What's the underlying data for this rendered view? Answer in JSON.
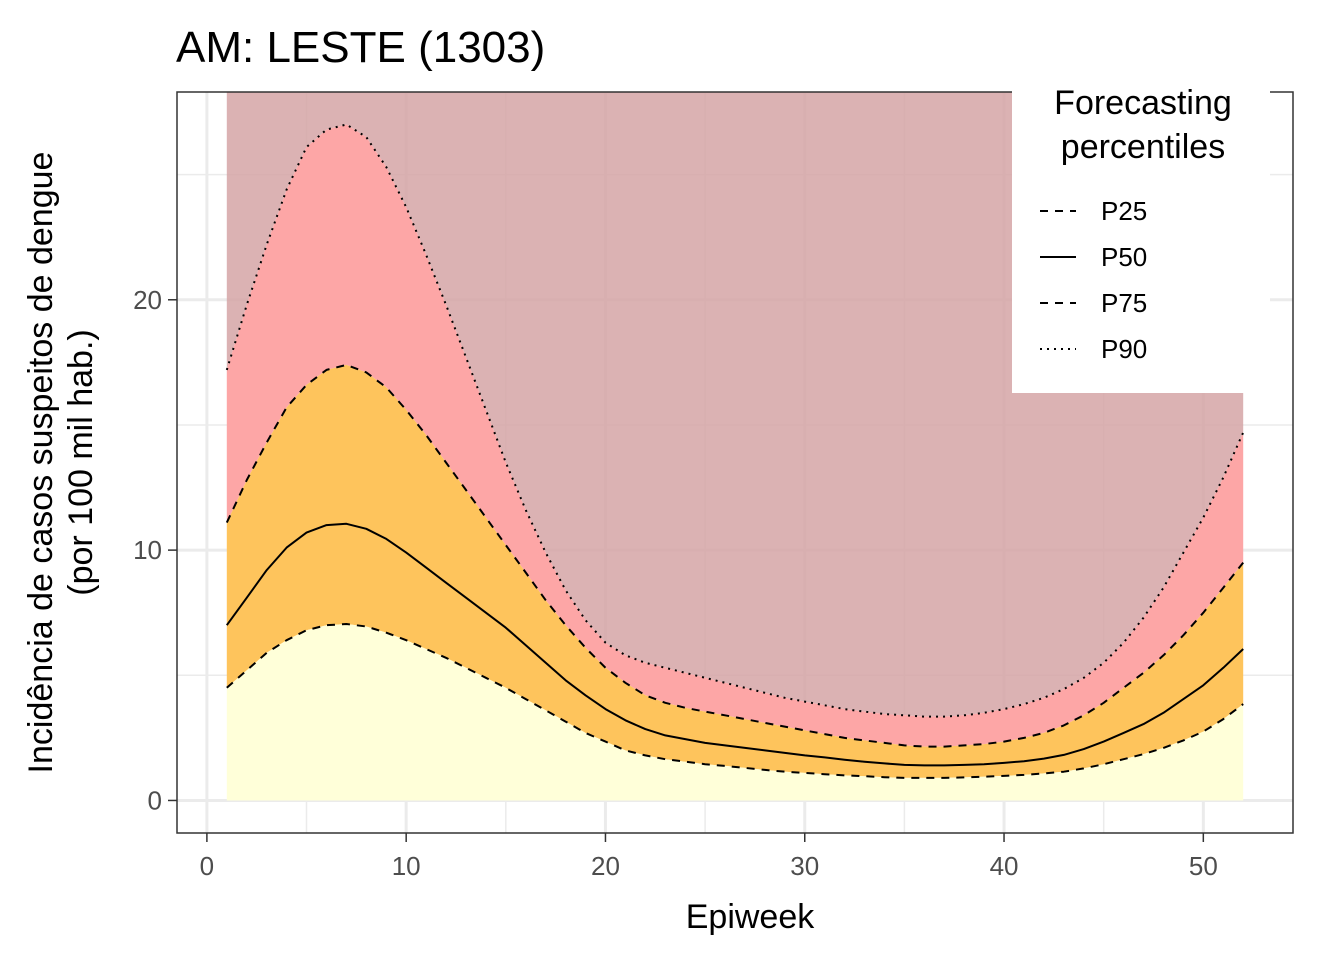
{
  "chart_data": {
    "type": "area",
    "title": "AM: LESTE (1303)",
    "xlabel": "Epiweek",
    "ylabel": "Incidência de casos suspeitos de dengue\n(por 100 mil hab.)",
    "xlim": [
      -1.5,
      54.5
    ],
    "ylim": [
      -1.3,
      28.3
    ],
    "x_ticks": [
      0,
      10,
      20,
      30,
      40,
      50
    ],
    "y_ticks": [
      0,
      10,
      20
    ],
    "grid": true,
    "legend": {
      "title": "Forecasting\npercentiles",
      "position": "top-right",
      "entries": [
        {
          "label": "P25",
          "dash": "dashed"
        },
        {
          "label": "P50",
          "dash": "solid"
        },
        {
          "label": "P75",
          "dash": "dashed"
        },
        {
          "label": "P90",
          "dash": "dotted"
        }
      ]
    },
    "x": [
      1,
      2,
      3,
      4,
      5,
      6,
      7,
      8,
      9,
      10,
      11,
      12,
      13,
      14,
      15,
      16,
      17,
      18,
      19,
      20,
      21,
      22,
      23,
      24,
      25,
      26,
      27,
      28,
      29,
      30,
      31,
      32,
      33,
      34,
      35,
      36,
      37,
      38,
      39,
      40,
      41,
      42,
      43,
      44,
      45,
      46,
      47,
      48,
      49,
      50,
      51,
      52
    ],
    "series": [
      {
        "name": "P25",
        "values": [
          4.5,
          5.2,
          5.9,
          6.4,
          6.8,
          7.0,
          7.05,
          6.95,
          6.7,
          6.4,
          6.05,
          5.7,
          5.3,
          4.9,
          4.5,
          4.05,
          3.6,
          3.15,
          2.7,
          2.35,
          2.0,
          1.8,
          1.65,
          1.55,
          1.45,
          1.38,
          1.3,
          1.22,
          1.15,
          1.1,
          1.05,
          1.0,
          0.97,
          0.93,
          0.9,
          0.9,
          0.9,
          0.92,
          0.95,
          0.98,
          1.02,
          1.08,
          1.15,
          1.28,
          1.45,
          1.65,
          1.85,
          2.1,
          2.4,
          2.75,
          3.25,
          3.85
        ]
      },
      {
        "name": "P50",
        "values": [
          7.0,
          8.1,
          9.2,
          10.1,
          10.7,
          11.0,
          11.05,
          10.85,
          10.45,
          9.9,
          9.3,
          8.7,
          8.1,
          7.5,
          6.9,
          6.2,
          5.5,
          4.8,
          4.2,
          3.65,
          3.2,
          2.85,
          2.6,
          2.45,
          2.3,
          2.2,
          2.1,
          2.0,
          1.9,
          1.8,
          1.72,
          1.63,
          1.55,
          1.48,
          1.42,
          1.4,
          1.4,
          1.42,
          1.45,
          1.5,
          1.57,
          1.67,
          1.82,
          2.05,
          2.35,
          2.7,
          3.05,
          3.5,
          4.05,
          4.6,
          5.3,
          6.05
        ]
      },
      {
        "name": "P75",
        "values": [
          11.1,
          12.8,
          14.3,
          15.7,
          16.6,
          17.2,
          17.4,
          17.1,
          16.5,
          15.6,
          14.6,
          13.5,
          12.4,
          11.3,
          10.2,
          9.1,
          8.0,
          7.0,
          6.1,
          5.3,
          4.7,
          4.2,
          3.9,
          3.7,
          3.55,
          3.4,
          3.25,
          3.1,
          2.95,
          2.8,
          2.65,
          2.5,
          2.4,
          2.3,
          2.2,
          2.15,
          2.15,
          2.2,
          2.25,
          2.35,
          2.5,
          2.7,
          3.0,
          3.4,
          3.9,
          4.5,
          5.1,
          5.8,
          6.6,
          7.5,
          8.5,
          9.5
        ]
      },
      {
        "name": "P90",
        "values": [
          17.2,
          19.8,
          22.2,
          24.4,
          26.1,
          26.8,
          27.0,
          26.5,
          25.3,
          23.7,
          21.8,
          19.8,
          17.7,
          15.6,
          13.5,
          11.6,
          9.9,
          8.4,
          7.2,
          6.3,
          5.8,
          5.5,
          5.3,
          5.1,
          4.9,
          4.7,
          4.5,
          4.3,
          4.1,
          3.95,
          3.8,
          3.65,
          3.55,
          3.45,
          3.4,
          3.35,
          3.35,
          3.4,
          3.5,
          3.65,
          3.85,
          4.1,
          4.45,
          4.9,
          5.5,
          6.3,
          7.3,
          8.5,
          9.9,
          11.3,
          12.9,
          14.7
        ]
      }
    ],
    "band_colors": {
      "below_p25": "#ffffd9",
      "p25_p75": "#fec45c",
      "p75_p90": "#fda6a6",
      "above_p90": "#d5a5a6"
    }
  }
}
